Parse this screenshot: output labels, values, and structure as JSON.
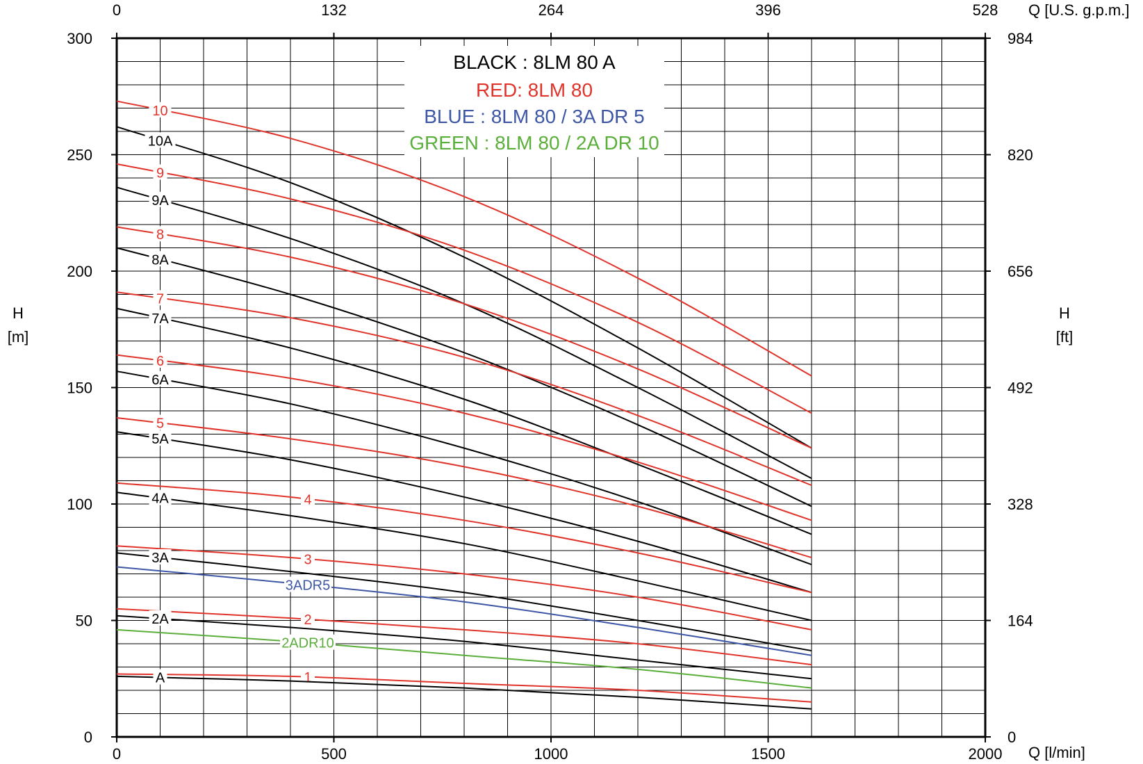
{
  "chart_data": {
    "type": "line",
    "x_label_bottom": "Q [l/min]",
    "x_label_top": "Q [U.S. g.p.m.]",
    "y_label_left": [
      "H",
      "[m]"
    ],
    "y_label_right": [
      "H",
      "[ft]"
    ],
    "xlim": [
      0,
      2000
    ],
    "ylim": [
      0,
      300
    ],
    "x_ticks_bottom": [
      "0",
      "500",
      "1000",
      "1500",
      "2000"
    ],
    "x_ticks_top": [
      "0",
      "132",
      "264",
      "396",
      "528"
    ],
    "y_ticks_left": [
      "0",
      "50",
      "100",
      "150",
      "200",
      "250",
      "300"
    ],
    "y_ticks_right": [
      "0",
      "164",
      "328",
      "492",
      "656",
      "820",
      "984"
    ],
    "grid": true,
    "colors": {
      "black": "#000000",
      "red": "#e0342b",
      "blue": "#3d56a6",
      "green": "#5aae3a"
    },
    "legend": [
      {
        "text": "BLACK : 8LM 80 A",
        "color": "#000000"
      },
      {
        "text": "RED: 8LM 80",
        "color": "#e0342b"
      },
      {
        "text": "BLUE : 8LM 80 / 3A DR 5",
        "color": "#3d56a6"
      },
      {
        "text": "GREEN : 8LM 80 / 2A DR 10",
        "color": "#5aae3a"
      }
    ],
    "series": [
      {
        "name": "10",
        "color": "#e0342b",
        "label_x": 100,
        "x": [
          0,
          400,
          800,
          1200,
          1600
        ],
        "y": [
          273,
          257,
          232,
          197,
          155
        ]
      },
      {
        "name": "10A",
        "color": "#000000",
        "label_x": 100,
        "x": [
          0,
          400,
          800,
          1200,
          1600
        ],
        "y": [
          262,
          238,
          206,
          167,
          124
        ]
      },
      {
        "name": "9",
        "color": "#e0342b",
        "label_x": 100,
        "x": [
          0,
          400,
          800,
          1200,
          1600
        ],
        "y": [
          246,
          231,
          209,
          178,
          139
        ]
      },
      {
        "name": "9A",
        "color": "#000000",
        "label_x": 100,
        "x": [
          0,
          400,
          800,
          1200,
          1600
        ],
        "y": [
          236,
          214,
          186,
          150,
          111
        ]
      },
      {
        "name": "8",
        "color": "#e0342b",
        "label_x": 100,
        "x": [
          0,
          400,
          800,
          1200,
          1600
        ],
        "y": [
          219,
          206,
          186,
          158,
          124
        ]
      },
      {
        "name": "8A",
        "color": "#000000",
        "label_x": 100,
        "x": [
          0,
          400,
          800,
          1200,
          1600
        ],
        "y": [
          210,
          190,
          165,
          134,
          99
        ]
      },
      {
        "name": "7",
        "color": "#e0342b",
        "label_x": 100,
        "x": [
          0,
          400,
          800,
          1200,
          1600
        ],
        "y": [
          191,
          180,
          163,
          138,
          108
        ]
      },
      {
        "name": "7A",
        "color": "#000000",
        "label_x": 100,
        "x": [
          0,
          400,
          800,
          1200,
          1600
        ],
        "y": [
          184,
          167,
          145,
          117,
          87
        ]
      },
      {
        "name": "6",
        "color": "#e0342b",
        "label_x": 100,
        "x": [
          0,
          400,
          800,
          1200,
          1600
        ],
        "y": [
          164,
          154,
          139,
          118,
          93
        ]
      },
      {
        "name": "6A",
        "color": "#000000",
        "label_x": 100,
        "x": [
          0,
          400,
          800,
          1200,
          1600
        ],
        "y": [
          157,
          143,
          124,
          101,
          74
        ]
      },
      {
        "name": "5",
        "color": "#e0342b",
        "label_x": 100,
        "x": [
          0,
          400,
          800,
          1200,
          1600
        ],
        "y": [
          137,
          128,
          116,
          99,
          77
        ]
      },
      {
        "name": "5A",
        "color": "#000000",
        "label_x": 100,
        "x": [
          0,
          400,
          800,
          1200,
          1600
        ],
        "y": [
          131,
          119,
          103,
          84,
          62
        ]
      },
      {
        "name": "4",
        "color": "#e0342b",
        "label_x": 440,
        "x": [
          0,
          400,
          800,
          1200,
          1600
        ],
        "y": [
          109,
          103,
          93,
          79,
          62
        ]
      },
      {
        "name": "4A",
        "color": "#000000",
        "label_x": 100,
        "x": [
          0,
          400,
          800,
          1200,
          1600
        ],
        "y": [
          105,
          95,
          83,
          67,
          50
        ]
      },
      {
        "name": "3",
        "color": "#e0342b",
        "label_x": 440,
        "x": [
          0,
          400,
          800,
          1200,
          1600
        ],
        "y": [
          82,
          77,
          70,
          60,
          46
        ]
      },
      {
        "name": "3A",
        "color": "#000000",
        "label_x": 100,
        "x": [
          0,
          400,
          800,
          1200,
          1600
        ],
        "y": [
          79,
          71,
          62,
          50,
          37
        ]
      },
      {
        "name": "3ADR5",
        "color": "#3d56a6",
        "label_x": 440,
        "x": [
          0,
          400,
          800,
          1200,
          1600
        ],
        "y": [
          73,
          66,
          58,
          47,
          35
        ]
      },
      {
        "name": "2",
        "color": "#e0342b",
        "label_x": 440,
        "x": [
          0,
          400,
          800,
          1200,
          1600
        ],
        "y": [
          55,
          51,
          46,
          40,
          31
        ]
      },
      {
        "name": "2A",
        "color": "#000000",
        "label_x": 100,
        "x": [
          0,
          400,
          800,
          1200,
          1600
        ],
        "y": [
          52,
          47,
          41,
          33,
          25
        ]
      },
      {
        "name": "2ADR10",
        "color": "#5aae3a",
        "label_x": 440,
        "x": [
          0,
          400,
          800,
          1200,
          1600
        ],
        "y": [
          46,
          41,
          35,
          29,
          21
        ]
      },
      {
        "name": "1",
        "color": "#e0342b",
        "label_x": 440,
        "x": [
          0,
          400,
          800,
          1200,
          1600
        ],
        "y": [
          27,
          26,
          23,
          20,
          15
        ]
      },
      {
        "name": "A",
        "color": "#000000",
        "label_x": 100,
        "x": [
          0,
          400,
          800,
          1200,
          1600
        ],
        "y": [
          26,
          24,
          21,
          17,
          12
        ]
      }
    ]
  }
}
